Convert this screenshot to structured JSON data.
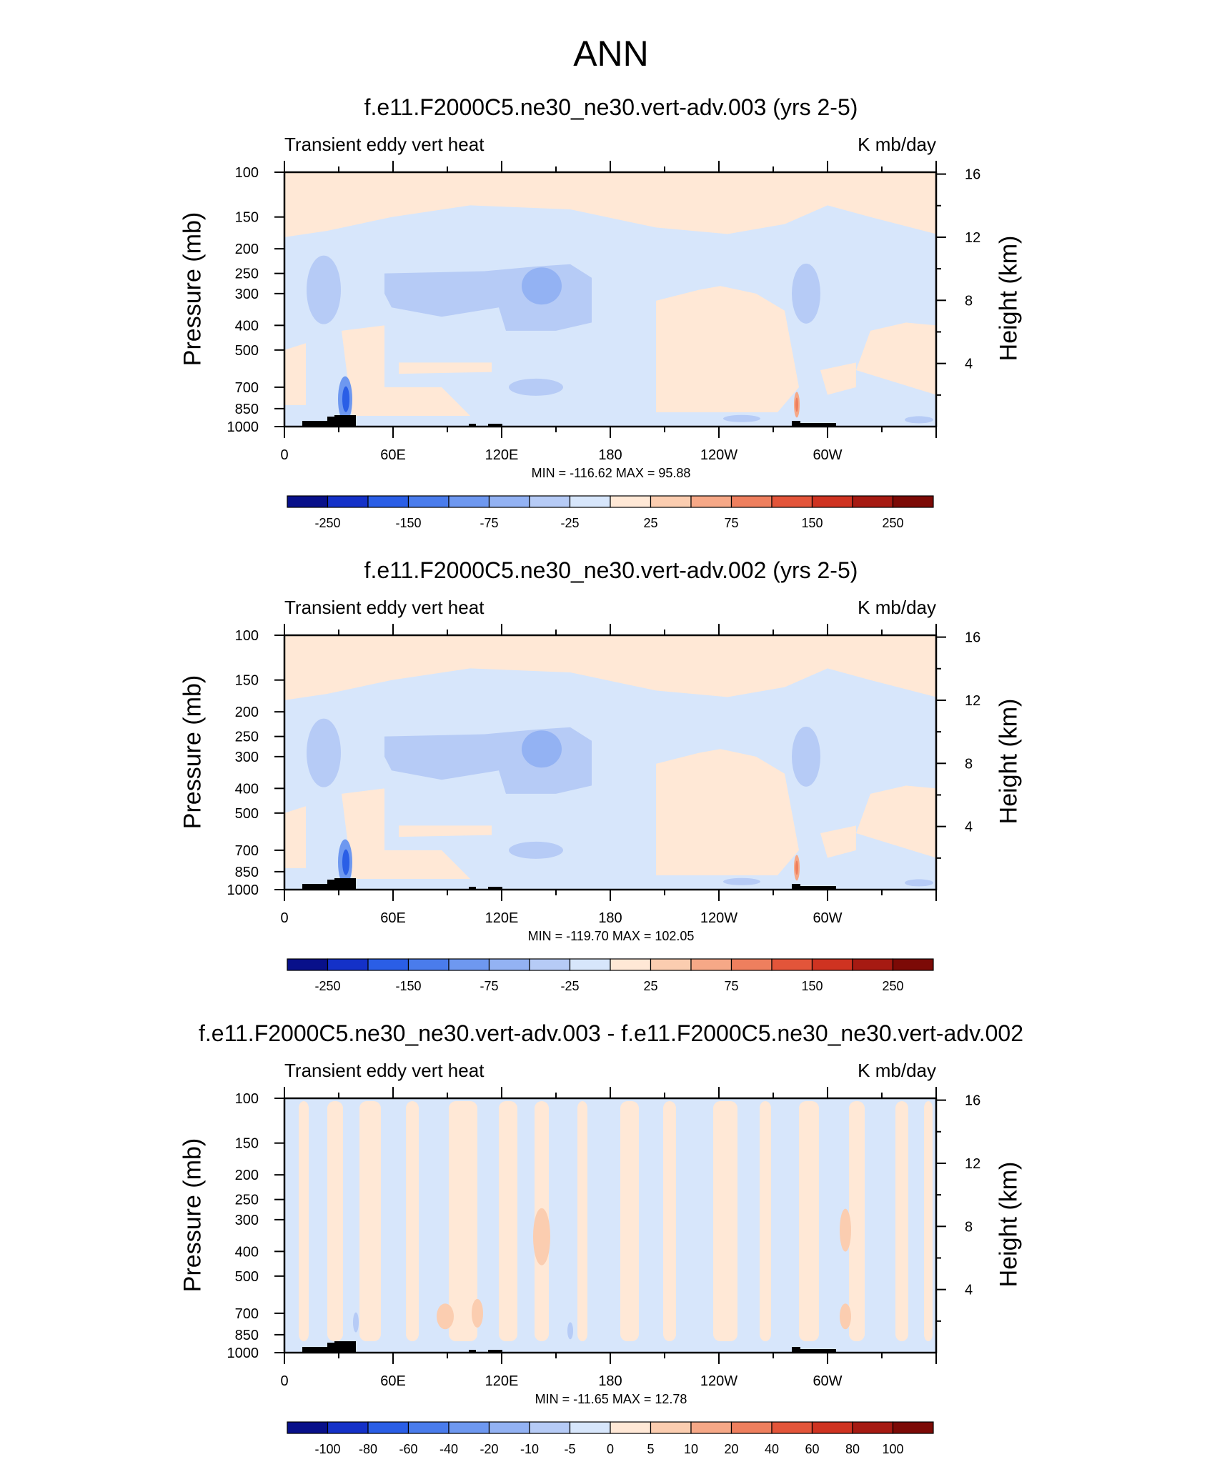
{
  "title": "ANN",
  "colors": {
    "levels_neg": [
      "#08108a",
      "#1431c8",
      "#2a5ee6",
      "#4a7cec",
      "#6e98f0",
      "#93b2f3",
      "#b6cbf6",
      "#d7e6fb"
    ],
    "levels_pos": [
      "#ffe8d6",
      "#fbcdb0",
      "#f6a887",
      "#ee7f5e",
      "#e3553a",
      "#cf3321",
      "#a61a12",
      "#7c0a06"
    ],
    "terrain": "#000000"
  },
  "chart_data": [
    {
      "type": "heatmap",
      "title": "f.e11.F2000C5.ne30_ne30.vert-adv.003 (yrs 2-5)",
      "subtitle_left": "Transient eddy vert heat",
      "subtitle_right": "K mb/day",
      "ylabel": "Pressure (mb)",
      "ylabel_right": "Height (km)",
      "xlim": [
        0,
        360
      ],
      "ylim": [
        1000,
        100
      ],
      "x_ticks": [
        "0",
        "60E",
        "120E",
        "180",
        "120W",
        "60W"
      ],
      "y_ticks": [
        "100",
        "150",
        "200",
        "250",
        "300",
        "400",
        "500",
        "700",
        "850",
        "1000"
      ],
      "y_ticks_right": [
        "16",
        "12",
        "8",
        "4"
      ],
      "stats": "MIN = -116.62  MAX =  95.88",
      "colorbar_labels": [
        "-250",
        "-150",
        "-75",
        "-25",
        "25",
        "75",
        "150",
        "250"
      ]
    },
    {
      "type": "heatmap",
      "title": "f.e11.F2000C5.ne30_ne30.vert-adv.002 (yrs 2-5)",
      "subtitle_left": "Transient eddy vert heat",
      "subtitle_right": "K mb/day",
      "ylabel": "Pressure (mb)",
      "ylabel_right": "Height (km)",
      "xlim": [
        0,
        360
      ],
      "ylim": [
        1000,
        100
      ],
      "x_ticks": [
        "0",
        "60E",
        "120E",
        "180",
        "120W",
        "60W"
      ],
      "y_ticks": [
        "100",
        "150",
        "200",
        "250",
        "300",
        "400",
        "500",
        "700",
        "850",
        "1000"
      ],
      "y_ticks_right": [
        "16",
        "12",
        "8",
        "4"
      ],
      "stats": "MIN = -119.70  MAX = 102.05",
      "colorbar_labels": [
        "-250",
        "-150",
        "-75",
        "-25",
        "25",
        "75",
        "150",
        "250"
      ]
    },
    {
      "type": "heatmap",
      "title": "f.e11.F2000C5.ne30_ne30.vert-adv.003 - f.e11.F2000C5.ne30_ne30.vert-adv.002",
      "subtitle_left": "Transient eddy vert heat",
      "subtitle_right": "K mb/day",
      "ylabel": "Pressure (mb)",
      "ylabel_right": "Height (km)",
      "xlim": [
        0,
        360
      ],
      "ylim": [
        1000,
        100
      ],
      "x_ticks": [
        "0",
        "60E",
        "120E",
        "180",
        "120W",
        "60W"
      ],
      "y_ticks": [
        "100",
        "150",
        "200",
        "250",
        "300",
        "400",
        "500",
        "700",
        "850",
        "1000"
      ],
      "y_ticks_right": [
        "16",
        "12",
        "8",
        "4"
      ],
      "stats": "MIN = -11.65  MAX =  12.78",
      "colorbar_labels": [
        "-100",
        "-80",
        "-60",
        "-40",
        "-20",
        "-10",
        "-5",
        "0",
        "5",
        "10",
        "20",
        "40",
        "60",
        "80",
        "100"
      ]
    }
  ]
}
